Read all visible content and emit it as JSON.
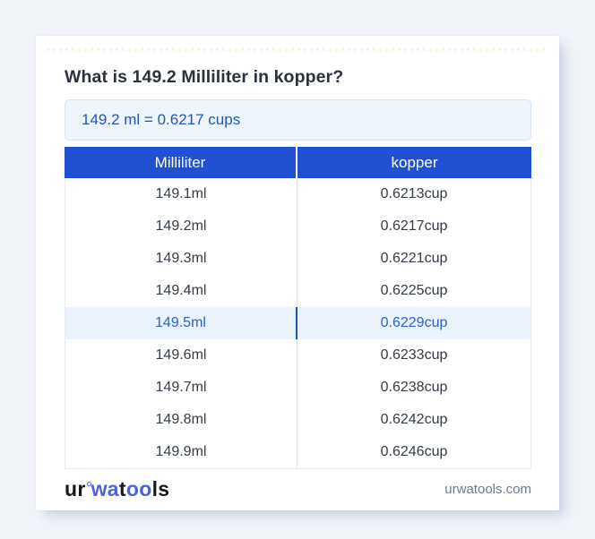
{
  "page": {
    "background": "#f1f4f9"
  },
  "title": "What is 149.2 Milliliter in kopper?",
  "answer_box": {
    "text": "149.2 ml = 0.6217 cups"
  },
  "table": {
    "headers": {
      "from": "Milliliter",
      "to": "kopper"
    },
    "rows": [
      {
        "ml": "149.1ml",
        "cup": "0.6213cup",
        "highlighted": false
      },
      {
        "ml": "149.2ml",
        "cup": "0.6217cup",
        "highlighted": false
      },
      {
        "ml": "149.3ml",
        "cup": "0.6221cup",
        "highlighted": false
      },
      {
        "ml": "149.4ml",
        "cup": "0.6225cup",
        "highlighted": false
      },
      {
        "ml": "149.5ml",
        "cup": "0.6229cup",
        "highlighted": true
      },
      {
        "ml": "149.6ml",
        "cup": "0.6233cup",
        "highlighted": false
      },
      {
        "ml": "149.7ml",
        "cup": "0.6238cup",
        "highlighted": false
      },
      {
        "ml": "149.8ml",
        "cup": "0.6242cup",
        "highlighted": false
      },
      {
        "ml": "149.9ml",
        "cup": "0.6246cup",
        "highlighted": false
      }
    ]
  },
  "footer": {
    "logo": {
      "ur": "ur",
      "wa": "wa",
      "t": "t",
      "oo": "oo",
      "ls": "ls"
    },
    "domain": "urwatools.com"
  },
  "colors": {
    "header_bg": "#2151d3",
    "answer_bg": "#eef5fd",
    "answer_text": "#2456b8",
    "highlight_bg": "#e9f2fd",
    "highlight_text": "#2c63c9",
    "logo_blue": "#4d61e3"
  }
}
